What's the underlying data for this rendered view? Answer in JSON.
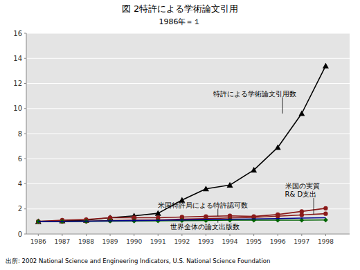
{
  "chart_data": {
    "type": "line",
    "title": "図 2特許による学術論文引用",
    "subtitle": "1986年＝１",
    "x": [
      1986,
      1987,
      1988,
      1989,
      1990,
      1991,
      1992,
      1993,
      1994,
      1995,
      1996,
      1997,
      1998
    ],
    "series": [
      {
        "color": "#000000",
        "marker": "triangle",
        "values": [
          1.0,
          1.05,
          1.1,
          1.3,
          1.45,
          1.65,
          2.7,
          3.6,
          3.9,
          5.1,
          6.9,
          9.6,
          13.4
        ]
      },
      {
        "color": "#8B1A1A",
        "marker": "circle",
        "values": [
          1.0,
          1.1,
          1.15,
          1.3,
          1.3,
          1.3,
          1.35,
          1.4,
          1.45,
          1.4,
          1.55,
          1.8,
          2.05
        ]
      },
      {
        "color": "#8B1A1A",
        "marker": "circle",
        "values": [
          1.0,
          1.0,
          1.02,
          1.08,
          1.1,
          1.12,
          1.18,
          1.22,
          1.28,
          1.32,
          1.42,
          1.52,
          1.62
        ]
      },
      {
        "color": "#006400",
        "marker": "diamond",
        "values": [
          1.0,
          1.0,
          1.01,
          1.03,
          1.04,
          1.05,
          1.07,
          1.08,
          1.1,
          1.1,
          1.1,
          1.1,
          1.12
        ]
      },
      {
        "color": "#00008B",
        "values": [
          1.0,
          1.01,
          1.02,
          1.05,
          1.07,
          1.09,
          1.12,
          1.15,
          1.17,
          1.2,
          1.23,
          1.27,
          1.3
        ]
      }
    ],
    "annotations": [
      {
        "text": "特許による学術論文引用数",
        "x": 1996.2,
        "y": 9.6,
        "text_x": 1993.3,
        "text_y": 11.2
      },
      {
        "text": "米国特許局による特許認可数",
        "x": 1993.5,
        "y": 1.42,
        "text_x": 1991.0,
        "text_y": 2.3
      },
      {
        "text": "世界全体の論文出版数",
        "x": 1993.5,
        "y": 1.08,
        "text_x": 1991.5,
        "text_y": 0.6
      },
      {
        "text": "米国の実質\nR& D支出",
        "x": 1997.5,
        "y": 1.55,
        "text_x": 1996.3,
        "text_y": 3.5
      }
    ],
    "xlim": [
      1985.5,
      1999.0
    ],
    "xticks": [
      1986,
      1987,
      1988,
      1989,
      1990,
      1991,
      1992,
      1993,
      1994,
      1995,
      1996,
      1997,
      1998
    ],
    "ylim": [
      0,
      16
    ],
    "yticks": [
      0,
      2,
      4,
      6,
      8,
      10,
      12,
      14,
      16
    ],
    "grid": true,
    "source": "出所:  2002 National Science and Engineering Indicators, U.S. National Science Foundation"
  }
}
